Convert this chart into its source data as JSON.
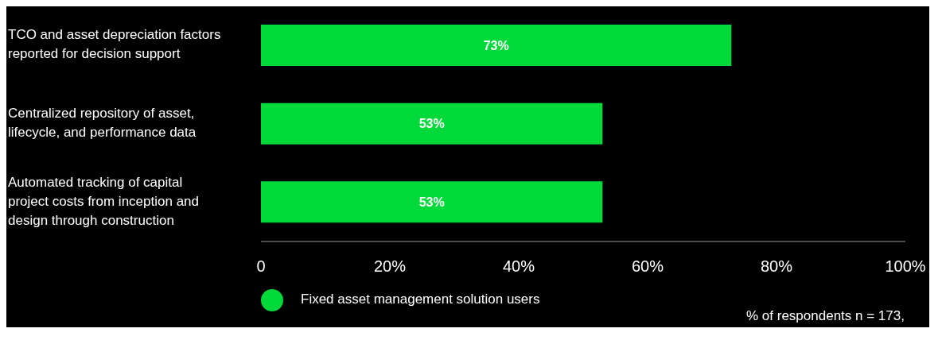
{
  "chart_data": {
    "type": "bar",
    "orientation": "horizontal",
    "categories": [
      "TCO and asset depreciation factors reported for decision support",
      "Centralized repository of asset, lifecycle, and performance data",
      "Automated tracking of capital project costs from inception and design through construction"
    ],
    "series": [
      {
        "name": "Fixed asset management solution users",
        "color": "#00d93a",
        "values": [
          73,
          53,
          53
        ],
        "value_labels": [
          "73%",
          "53%",
          "53%"
        ]
      }
    ],
    "xlim": [
      0,
      100
    ],
    "xticks": [
      0,
      {
        "value": 20,
        "label": "20%"
      },
      {
        "value": 40,
        "label": "40%"
      },
      {
        "value": 60,
        "label": "60%"
      },
      {
        "value": 80,
        "label": "80%"
      },
      {
        "value": 100,
        "label": "100%"
      }
    ],
    "grid": false,
    "legend": "bottom",
    "annotations": [
      "% of respondents n = 173,"
    ]
  }
}
